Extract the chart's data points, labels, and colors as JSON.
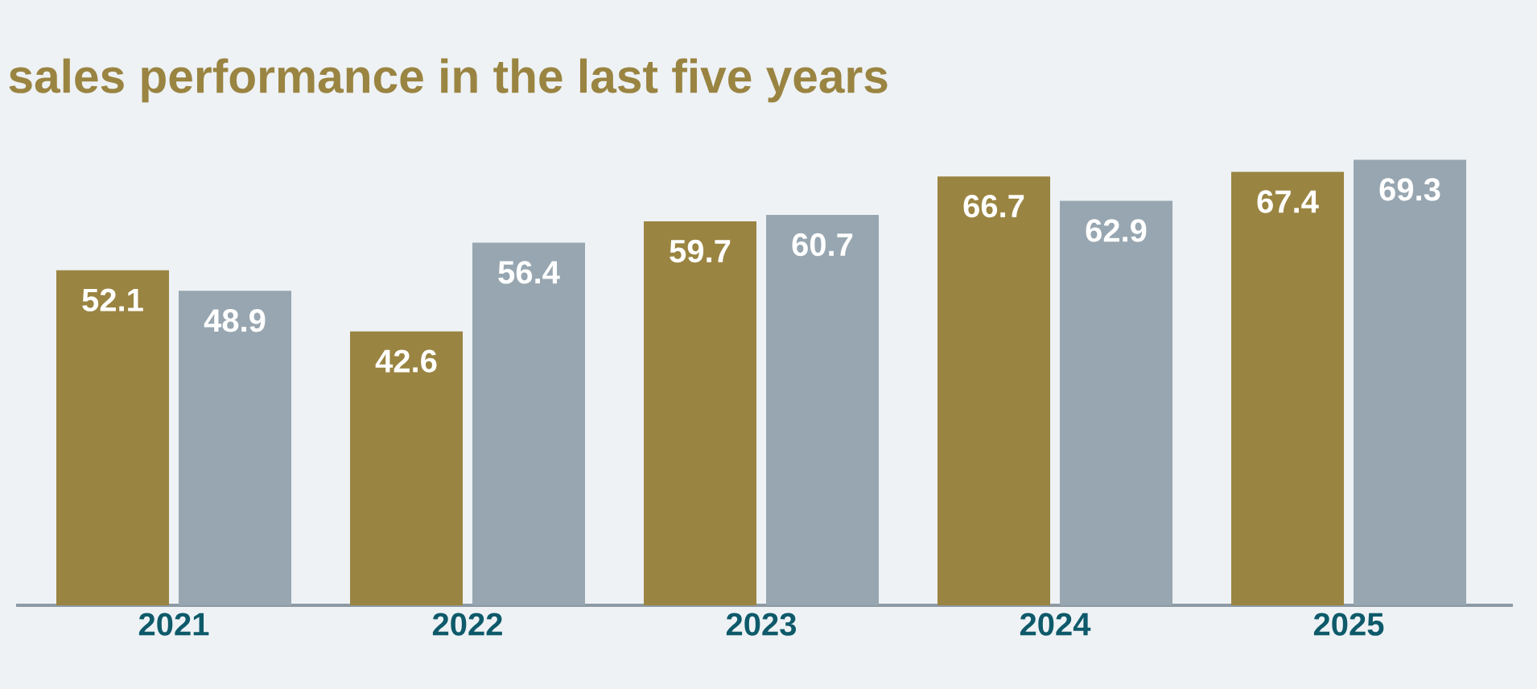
{
  "chart_data": {
    "type": "bar",
    "title": "sales performance in the last five years",
    "categories": [
      "2021",
      "2022",
      "2023",
      "2024",
      "2025"
    ],
    "series": [
      {
        "color": "#9a8441",
        "values": [
          52.1,
          42.6,
          59.7,
          66.7,
          67.4
        ]
      },
      {
        "color": "#97a6b0",
        "values": [
          48.9,
          56.4,
          60.7,
          62.9,
          69.3
        ]
      }
    ],
    "data_labels": true
  }
}
